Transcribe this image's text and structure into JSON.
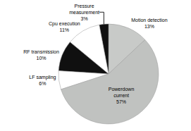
{
  "chart_data": {
    "type": "pie",
    "categories": [
      "Motion detection",
      "Pressure\nmeasurement",
      "Cpu execution",
      "RF transmission",
      "LF sampling",
      "Powerdown\ncurrent"
    ],
    "values": [
      13,
      3,
      11,
      10,
      6,
      57
    ],
    "value_labels": [
      "13%",
      "3%",
      "11%",
      "10%",
      "6%",
      "57%"
    ],
    "colors": [
      "#c8cac8",
      "#101010",
      "#ffffff",
      "#101010",
      "#ffffff",
      "#c0c2c0"
    ],
    "data_labels": true
  }
}
